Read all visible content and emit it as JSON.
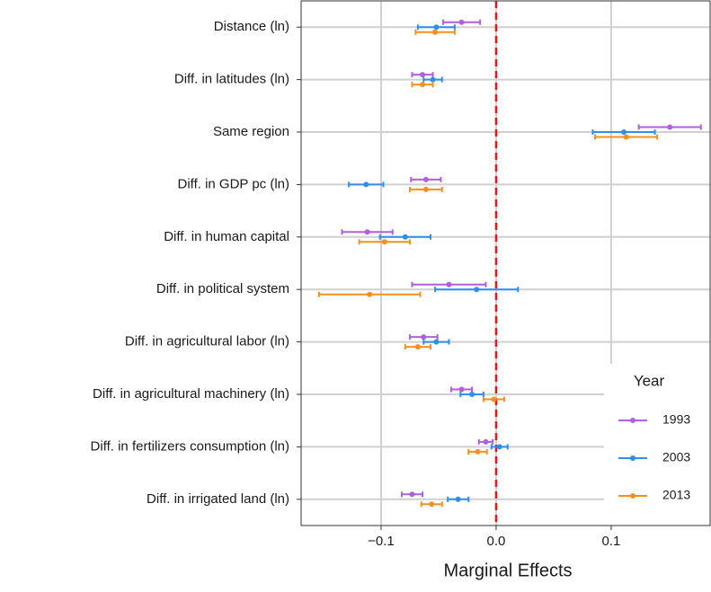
{
  "chart_data": {
    "type": "errorbar",
    "x_label": "Marginal Effects",
    "legend_title": "Year",
    "legend_position": "bottom-right",
    "categories": [
      "Distance (ln)",
      "Diff. in latitudes (ln)",
      "Same region",
      "Diff. in GDP pc (ln)",
      "Diff. in human capital",
      "Diff. in political system",
      "Diff. in agricultural labor (ln)",
      "Diff. in agricultural machinery (ln)",
      "Diff. in fertilizers consumption (ln)",
      "Diff. in irrigated land (ln)"
    ],
    "series": [
      {
        "name": "1993",
        "color": "#b15fe0",
        "values": [
          -0.03,
          -0.064,
          0.151,
          -0.061,
          -0.112,
          -0.041,
          -0.063,
          -0.03,
          -0.009,
          -0.073
        ],
        "errors": [
          0.016,
          0.009,
          0.027,
          0.013,
          0.022,
          0.032,
          0.012,
          0.009,
          0.006,
          0.009
        ]
      },
      {
        "name": "2003",
        "color": "#2e8ff0",
        "values": [
          -0.052,
          -0.055,
          0.111,
          -0.113,
          -0.079,
          -0.017,
          -0.052,
          -0.021,
          0.003,
          -0.033
        ],
        "errors": [
          0.016,
          0.008,
          0.027,
          0.015,
          0.022,
          0.036,
          0.011,
          0.01,
          0.007,
          0.009
        ]
      },
      {
        "name": "2013",
        "color": "#f5901e",
        "values": [
          -0.053,
          -0.064,
          0.113,
          -0.061,
          -0.097,
          -0.11,
          -0.068,
          -0.002,
          -0.016,
          -0.056
        ],
        "errors": [
          0.017,
          0.009,
          0.027,
          0.014,
          0.022,
          0.044,
          0.011,
          0.009,
          0.008,
          0.009
        ]
      }
    ],
    "xlim": [
      -0.1695,
      0.186
    ],
    "xticks": [
      {
        "value": -0.1,
        "label": "−0.1"
      },
      {
        "value": 0,
        "label": "0.0"
      },
      {
        "value": 0.1,
        "label": "0.1"
      }
    ],
    "reference_line": 0,
    "reference_color": "#e31a1c",
    "grid": true
  }
}
